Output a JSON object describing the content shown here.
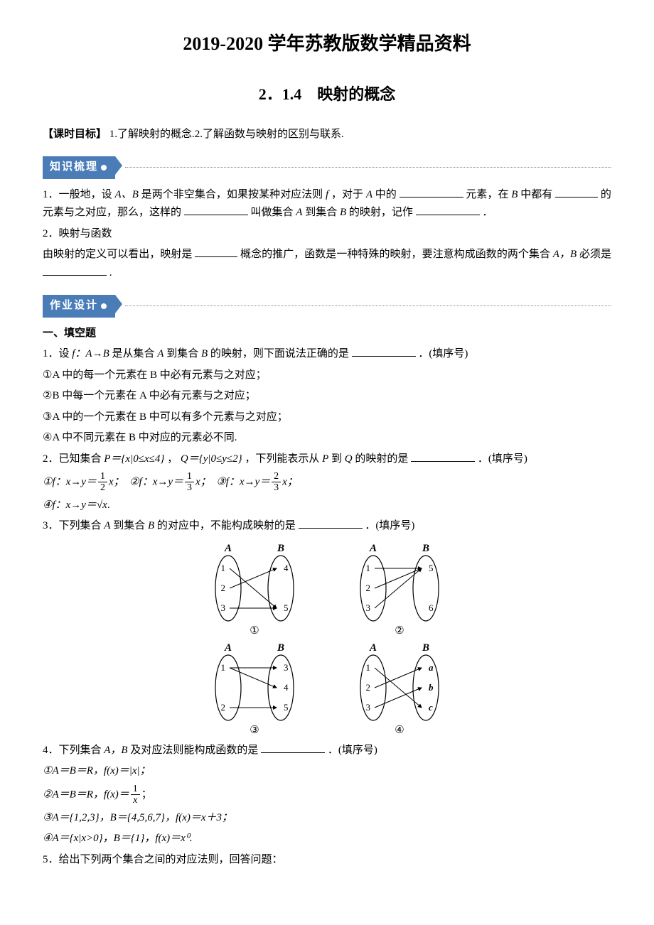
{
  "header": {
    "main_title": "2019-2020 学年苏教版数学精品资料",
    "section_title": "2．1.4　映射的概念"
  },
  "objective": {
    "label": "【课时目标】",
    "text": "1.了解映射的概念.2.了解函数与映射的区别与联系."
  },
  "ribbons": {
    "zhishi": "知识梳理",
    "zuoye": "作业设计"
  },
  "knowledge": {
    "item1_pre": "1．一般地，设",
    "item1_ab": "A、B",
    "item1_mid1": "是两个非空集合，如果按某种对应法则",
    "item1_f": "f",
    "item1_mid2": "，对于",
    "item1_a": "A",
    "item1_mid3": "中的",
    "item1_mid4": "元素，在",
    "item1_b": "B",
    "item1_mid5": "中都有",
    "item1_mid6": "的元素与之对应，那么，这样的",
    "item1_mid7": "叫做集合",
    "item1_a2": "A",
    "item1_mid8": "到集合",
    "item1_b2": "B",
    "item1_mid9": "的映射，记作",
    "item1_end": "．",
    "item2_title": "2．映射与函数",
    "item2_text1": "由映射的定义可以看出，映射是",
    "item2_text2": "概念的推广，函数是一种特殊的映射，要注意构成函数的两个集合",
    "item2_ab2": "A，B",
    "item2_text3": "必须是",
    "item2_end": "."
  },
  "tiankong_header": "一、填空题",
  "q1": {
    "stem_pre": "1．设",
    "stem_f": "f：A→B",
    "stem_mid": "是从集合",
    "stem_a": "A",
    "stem_mid2": "到集合",
    "stem_b": "B",
    "stem_mid3": "的映射，则下面说法正确的是",
    "stem_end": "．(填序号)",
    "opt1": "①A 中的每一个元素在 B 中必有元素与之对应；",
    "opt2": "②B 中每一个元素在 A 中必有元素与之对应；",
    "opt3": "③A 中的一个元素在 B 中可以有多个元素与之对应；",
    "opt4": "④A 中不同元素在 B 中对应的元素必不同."
  },
  "q2": {
    "stem_pre": "2．已知集合",
    "stem_p": "P＝{x|0≤x≤4}",
    "stem_comma": "，",
    "stem_q": "Q＝{y|0≤y≤2}",
    "stem_mid": "，下列能表示从",
    "stem_p2": "P",
    "stem_mid2": "到",
    "stem_q2": "Q",
    "stem_mid3": "的映射的是",
    "stem_end": "．(填序号)",
    "opt1_pre": "①f：x→y＝",
    "opt1_num": "1",
    "opt1_den": "2",
    "opt1_suf": "x；",
    "opt2_pre": "②f：x→y＝",
    "opt2_num": "1",
    "opt2_den": "3",
    "opt2_suf": "x；",
    "opt3_pre": "③f：x→y＝",
    "opt3_num": "2",
    "opt3_den": "3",
    "opt3_suf": "x；",
    "opt4_pre": "④f：x→y＝",
    "opt4_sqrt": "√x",
    "opt4_suf": "."
  },
  "q3": {
    "stem_pre": "3．下列集合",
    "stem_a": "A",
    "stem_mid": "到集合",
    "stem_b": "B",
    "stem_mid2": "的对应中，不能构成映射的是",
    "stem_end": "．(填序号)",
    "labels": {
      "A": "A",
      "B": "B"
    },
    "d1": {
      "left": [
        "1",
        "2",
        "3"
      ],
      "right": [
        "4",
        "5"
      ],
      "arrows": [
        [
          0,
          1
        ],
        [
          1,
          0
        ],
        [
          2,
          1
        ]
      ],
      "num": "①"
    },
    "d2": {
      "left": [
        "1",
        "2",
        "3"
      ],
      "right": [
        "5",
        "6"
      ],
      "arrows": [
        [
          0,
          0
        ],
        [
          1,
          0
        ],
        [
          2,
          0
        ]
      ],
      "num": "②"
    },
    "d3": {
      "left": [
        "1",
        "2"
      ],
      "right": [
        "3",
        "4",
        "5"
      ],
      "arrows": [
        [
          0,
          0
        ],
        [
          0,
          1
        ],
        [
          1,
          2
        ]
      ],
      "num": "③"
    },
    "d4": {
      "left": [
        "1",
        "2",
        "3"
      ],
      "right": [
        "a",
        "b",
        "c"
      ],
      "arrows": [
        [
          0,
          2
        ],
        [
          1,
          0
        ],
        [
          2,
          1
        ]
      ],
      "num": "④",
      "right_italic": true
    }
  },
  "q4": {
    "stem_pre": "4．下列集合",
    "stem_ab": "A，B",
    "stem_mid": "及对应法则能构成函数的是",
    "stem_end": "．(填序号)",
    "opt1": "①A＝B＝R，f(x)＝|x|；",
    "opt2_pre": "②A＝B＝R，f(x)＝",
    "opt2_num": "1",
    "opt2_den": "x",
    "opt2_suf": "；",
    "opt3": "③A＝{1,2,3}，B＝{4,5,6,7}，f(x)＝x＋3；",
    "opt4": "④A＝{x|x>0}，B＝{1}，f(x)＝x⁰."
  },
  "q5": {
    "stem": "5．给出下列两个集合之间的对应法则，回答问题："
  },
  "colors": {
    "ribbon_bg": "#4a7db8",
    "ribbon_text": "#ffffff",
    "text": "#000000",
    "background": "#ffffff",
    "dotted": "#888888"
  }
}
